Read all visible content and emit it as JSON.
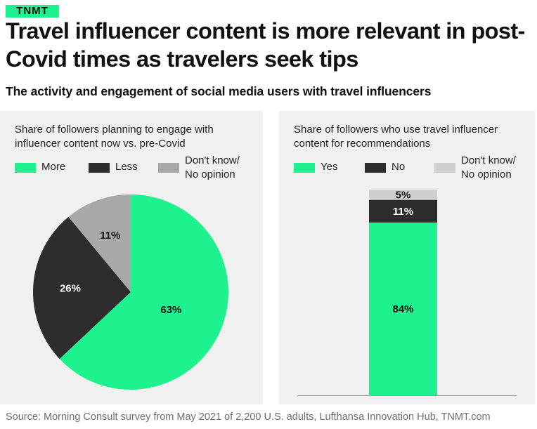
{
  "brand": {
    "logo_text": "TNMT",
    "accent_color": "#1ef28f"
  },
  "header": {
    "title": "Travel influencer content is more relevant in post-Covid times as travelers seek tips",
    "subtitle": "The activity and engagement of social media users with travel influencers"
  },
  "chart_data": [
    {
      "type": "pie",
      "title": "Share of followers planning to engage with influencer content now vs. pre-Covid",
      "categories": [
        "More",
        "Less",
        "Don't know/ No opinion"
      ],
      "values": [
        63,
        26,
        11
      ],
      "labels": [
        "63%",
        "26%",
        "11%"
      ],
      "colors": [
        "#1ef28f",
        "#2d2d2d",
        "#a8a8a8"
      ],
      "legend": [
        {
          "label": "More"
        },
        {
          "label": "Less"
        },
        {
          "label_line1": "Don't know/",
          "label_line2": "No opinion"
        }
      ]
    },
    {
      "type": "bar",
      "stacked": true,
      "title": "Share of followers who use travel influencer content for recommendations",
      "categories": [
        "Yes",
        "No",
        "Don't know/ No opinion"
      ],
      "values": [
        84,
        11,
        5
      ],
      "labels": [
        "84%",
        "11%",
        "5%"
      ],
      "colors": [
        "#1ef28f",
        "#2d2d2d",
        "#cfcfcf"
      ],
      "ylim": [
        0,
        100
      ],
      "legend": [
        {
          "label": "Yes"
        },
        {
          "label": "No"
        },
        {
          "label_line1": "Don't know/",
          "label_line2": "No opinion"
        }
      ]
    }
  ],
  "footer": {
    "source": "Source: Morning Consult survey from May 2021 of 2,200 U.S. adults, Lufthansa Innovation Hub, TNMT.com"
  }
}
